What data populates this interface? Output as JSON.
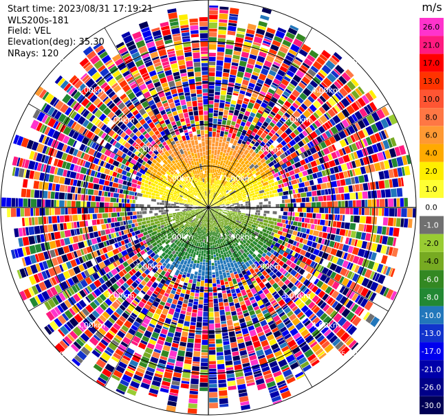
{
  "header": {
    "start_time": "Start time: 2023/08/31 17:19:21",
    "instrument": "WLS200s-181",
    "field": "Field: VEL",
    "elevation": "Elevation(deg): 35.30",
    "nrays": "NRays: 120"
  },
  "colorbar": {
    "unit": "m/s",
    "levels": [
      "26.0",
      "21.0",
      "17.0",
      "13.0",
      "10.0",
      "8.0",
      "6.0",
      "4.0",
      "2.0",
      "1.0",
      "0.0",
      "-1.0",
      "-2.0",
      "-4.0",
      "-6.0",
      "-8.0",
      "-10.0",
      "-13.0",
      "-17.0",
      "-21.0",
      "-26.0",
      "-30.0"
    ],
    "colors": [
      "#ff33cc",
      "#ff1a80",
      "#ff0000",
      "#ff3300",
      "#ff5533",
      "#ff7744",
      "#ff9933",
      "#ffaa00",
      "#ffee00",
      "#ffff33",
      "#ffffff",
      "#707070",
      "#99cc33",
      "#77aa22",
      "#338822",
      "#228833",
      "#2277bb",
      "#1133cc",
      "#0000ee",
      "#0000aa",
      "#000088",
      "#000055"
    ]
  },
  "chart_data": {
    "type": "polar-ppi",
    "field": "VEL",
    "unit": "m/s",
    "n_rays": 120,
    "elevation_deg": 35.3,
    "range_rings_km": [
      1.0,
      2.0,
      3.0,
      4.0,
      5.0
    ],
    "ring_labels": [
      "1.00km",
      "2.00km",
      "3.00km",
      "4.00km",
      "5.00km"
    ],
    "max_range_km": 5.0,
    "coherent_range_km": 1.75,
    "near_range_pattern": {
      "north": "positive 1.0 to 8.0 m/s (yellow to orange)",
      "south": "negative -1.0 to -10.0 m/s (green to blue)",
      "east_west": "near 0 (gray)"
    },
    "far_range_pattern": "noise, all bins from -30.0 to 26.0 m/s",
    "colorbar_range": [
      -30.0,
      26.0
    ]
  }
}
